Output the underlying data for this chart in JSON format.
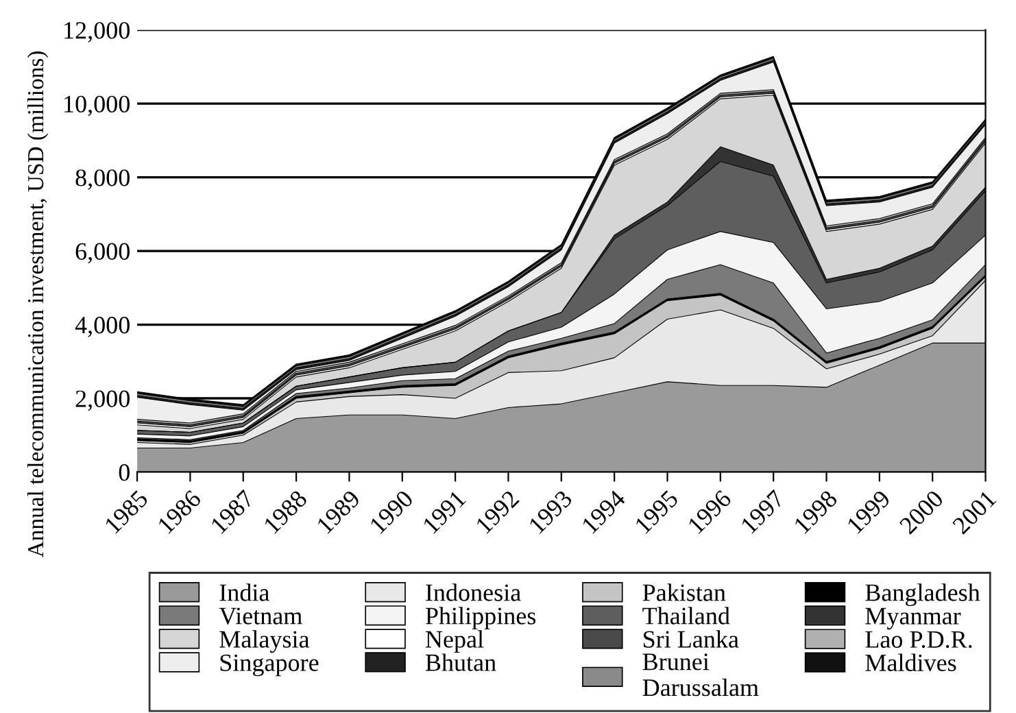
{
  "chart_data": {
    "type": "area",
    "stacked": true,
    "ylabel": "Annual telecommunication investment, USD (millions)",
    "x": [
      1985,
      1986,
      1987,
      1988,
      1989,
      1990,
      1991,
      1992,
      1993,
      1994,
      1995,
      1996,
      1997,
      1998,
      1999,
      2000,
      2001
    ],
    "xlim": [
      1985,
      2001
    ],
    "xticks": [
      1985,
      1986,
      1987,
      1988,
      1989,
      1990,
      1991,
      1992,
      1993,
      1994,
      1995,
      1996,
      1997,
      1998,
      1999,
      2000,
      2001
    ],
    "ylim": [
      0,
      12000
    ],
    "yticks": [
      0,
      {
        "value": 2000,
        "label": "2,000"
      },
      {
        "value": 4000,
        "label": "4,000"
      },
      {
        "value": 6000,
        "label": "6,000"
      },
      {
        "value": 8000,
        "label": "8,000"
      },
      {
        "value": 10000,
        "label": "10,000"
      },
      {
        "value": 12000,
        "label": "12,000"
      }
    ],
    "grid": "y",
    "legend": "bottom",
    "series": [
      {
        "name": "India",
        "color": "#9a9a9a",
        "values": [
          650,
          650,
          800,
          1450,
          1550,
          1550,
          1450,
          1750,
          1850,
          2150,
          2450,
          2350,
          2350,
          2300,
          2900,
          3500,
          3500
        ]
      },
      {
        "name": "Indonesia",
        "color": "#e8e8e8",
        "values": [
          150,
          100,
          200,
          450,
          500,
          550,
          550,
          950,
          900,
          950,
          1700,
          2050,
          1550,
          500,
          300,
          200,
          1700
        ]
      },
      {
        "name": "Pakistan",
        "color": "#c4c4c4",
        "values": [
          50,
          50,
          50,
          100,
          100,
          200,
          350,
          400,
          700,
          650,
          500,
          400,
          200,
          150,
          150,
          200,
          100
        ]
      },
      {
        "name": "Bangladesh",
        "color": "#000000",
        "values": [
          50,
          50,
          50,
          50,
          50,
          50,
          50,
          50,
          50,
          50,
          50,
          50,
          50,
          50,
          50,
          50,
          50
        ]
      },
      {
        "name": "Vietnam",
        "color": "#7a7a7a",
        "values": [
          30,
          30,
          30,
          80,
          80,
          130,
          130,
          130,
          130,
          230,
          530,
          780,
          980,
          230,
          230,
          180,
          280
        ]
      },
      {
        "name": "Philippines",
        "color": "#f4f4f4",
        "values": [
          100,
          100,
          100,
          100,
          150,
          150,
          200,
          250,
          300,
          800,
          800,
          900,
          1100,
          1200,
          1000,
          1000,
          800
        ]
      },
      {
        "name": "Thailand",
        "color": "#5e5e5e",
        "values": [
          100,
          100,
          100,
          100,
          150,
          200,
          250,
          300,
          400,
          1500,
          1200,
          1900,
          1800,
          700,
          800,
          900,
          1200
        ]
      },
      {
        "name": "Myanmar",
        "color": "#333333",
        "values": [
          0,
          0,
          0,
          0,
          0,
          0,
          0,
          0,
          0,
          100,
          100,
          400,
          300,
          100,
          100,
          100,
          100
        ]
      },
      {
        "name": "Malaysia",
        "color": "#d6d6d6",
        "values": [
          150,
          100,
          100,
          250,
          250,
          500,
          850,
          800,
          1200,
          1900,
          1700,
          1300,
          1900,
          1300,
          1200,
          1000,
          1200
        ]
      },
      {
        "name": "Nepal",
        "color": "#ffffff",
        "values": [
          50,
          50,
          50,
          50,
          50,
          50,
          50,
          50,
          50,
          50,
          50,
          50,
          50,
          50,
          50,
          50,
          50
        ]
      },
      {
        "name": "Sri Lanka",
        "color": "#4a4a4a",
        "values": [
          50,
          50,
          50,
          50,
          50,
          50,
          50,
          50,
          50,
          50,
          50,
          50,
          50,
          50,
          50,
          50,
          50
        ]
      },
      {
        "name": "Lao P.D.R.",
        "color": "#b0b0b0",
        "values": [
          50,
          50,
          50,
          50,
          50,
          50,
          50,
          50,
          50,
          50,
          50,
          50,
          50,
          50,
          50,
          50,
          50
        ]
      },
      {
        "name": "Singapore",
        "color": "#eeeeee",
        "values": [
          600,
          500,
          100,
          50,
          50,
          150,
          250,
          250,
          350,
          450,
          550,
          350,
          750,
          550,
          450,
          450,
          350
        ]
      },
      {
        "name": "Bhutan",
        "color": "#222222",
        "values": [
          50,
          50,
          50,
          50,
          50,
          50,
          50,
          50,
          50,
          50,
          50,
          50,
          50,
          50,
          50,
          50,
          50
        ]
      },
      {
        "name": "Brunei\nDarussalam",
        "color": "#8a8a8a",
        "values": [
          50,
          50,
          50,
          50,
          50,
          50,
          50,
          50,
          50,
          50,
          50,
          50,
          50,
          50,
          50,
          50,
          50
        ]
      },
      {
        "name": "Maldives",
        "color": "#111111",
        "values": [
          50,
          50,
          50,
          50,
          50,
          50,
          50,
          50,
          50,
          50,
          50,
          50,
          50,
          50,
          50,
          50,
          50
        ]
      }
    ]
  }
}
